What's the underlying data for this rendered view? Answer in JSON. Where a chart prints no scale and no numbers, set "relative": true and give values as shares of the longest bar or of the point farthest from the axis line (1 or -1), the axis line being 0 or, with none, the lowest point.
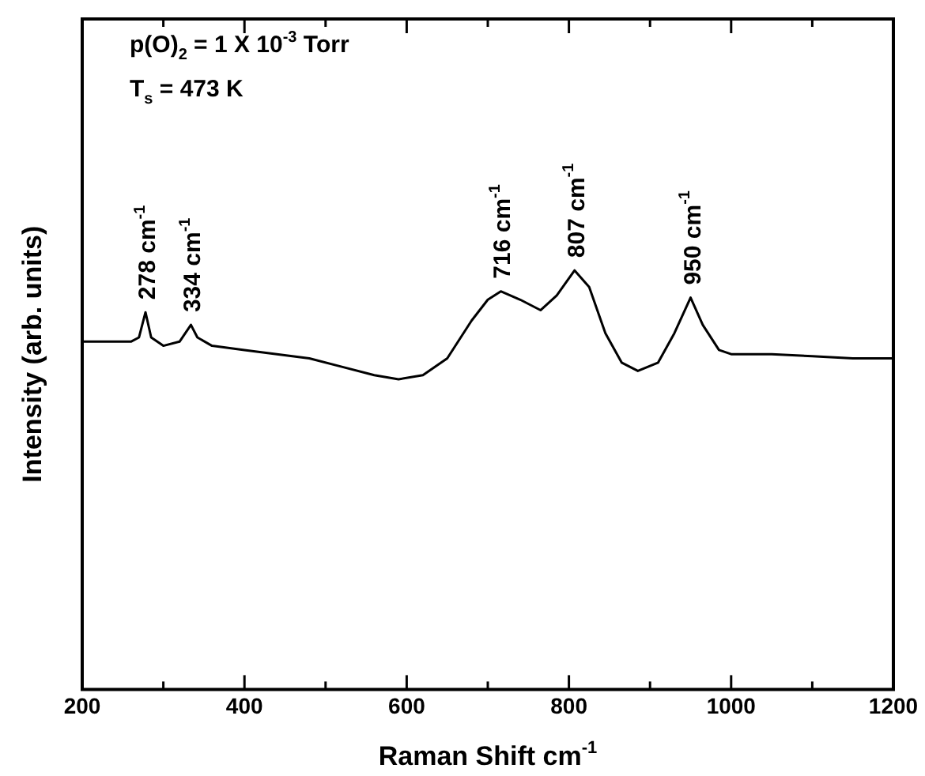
{
  "chart_data": {
    "type": "line",
    "relative": true,
    "xlabel": "Raman Shift cm$^{-1}$",
    "ylabel": "Intensity (arb. units)",
    "xlim": [
      200,
      1200
    ],
    "xticks": [
      200,
      {
        "value": 300,
        "label": null
      },
      400,
      {
        "value": 500,
        "label": null
      },
      600,
      {
        "value": 700,
        "label": null
      },
      800,
      {
        "value": 900,
        "label": null
      },
      1000,
      {
        "value": 1100,
        "label": null
      },
      1200
    ],
    "x": [
      200,
      230,
      260,
      270,
      278,
      285,
      300,
      320,
      334,
      342,
      360,
      400,
      440,
      480,
      520,
      560,
      590,
      620,
      650,
      680,
      700,
      716,
      740,
      765,
      785,
      807,
      825,
      845,
      865,
      885,
      910,
      930,
      950,
      965,
      985,
      1000,
      1050,
      1100,
      1150,
      1200
    ],
    "series": [
      {
        "color": "#000000",
        "values": [
          0.83,
          0.83,
          0.83,
          0.84,
          0.9,
          0.84,
          0.82,
          0.83,
          0.87,
          0.84,
          0.82,
          0.81,
          0.8,
          0.79,
          0.77,
          0.75,
          0.74,
          0.75,
          0.79,
          0.88,
          0.93,
          0.95,
          0.93,
          0.905,
          0.94,
          1,
          0.96,
          0.85,
          0.78,
          0.76,
          0.78,
          0.85,
          0.935,
          0.87,
          0.81,
          0.8,
          0.8,
          0.795,
          0.79,
          0.79
        ]
      }
    ],
    "marker": "none",
    "grid": false,
    "legend": false,
    "annotations": [
      "p(O)$_{2}$ = 1 X 10$^{-3}$ Torr",
      "T$_{s}$ = 473 K",
      {
        "text": "278 cm$^{-1}$",
        "x": 278,
        "y": 0.9
      },
      {
        "text": "334 cm$^{-1}$",
        "x": 334,
        "y": 0.87
      },
      {
        "text": "716 cm$^{-1}$",
        "x": 716,
        "y": 0.95
      },
      {
        "text": "807 cm$^{-1}$",
        "x": 807,
        "y": 1
      },
      {
        "text": "950 cm$^{-1}$",
        "x": 950,
        "y": 0.935
      }
    ]
  }
}
